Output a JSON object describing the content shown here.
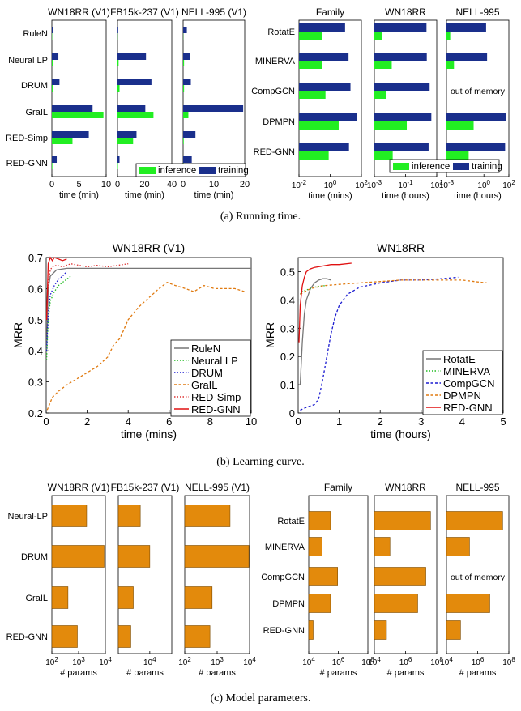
{
  "captions": {
    "a": "(a)  Running time.",
    "b": "(b)  Learning curve.",
    "c": "(c)  Model parameters."
  },
  "legend_labels": {
    "inference": "inference",
    "training": "training"
  },
  "colors": {
    "inference": "#22ee22",
    "training": "#1a2f8c",
    "params": "#e38a0c"
  },
  "misc": {
    "oom": "out of memory"
  },
  "chart_data": [
    {
      "type": "bar",
      "orientation": "horizontal",
      "id": "time-inductive",
      "methods": [
        "RuleN",
        "Neural LP",
        "DRUM",
        "GraIL",
        "RED-Simp",
        "RED-GNN"
      ],
      "xlabel": "time (min)",
      "panels": [
        {
          "title": "WN18RR (V1)",
          "xlim": [
            0,
            10
          ],
          "ticks": [
            0,
            5,
            10
          ],
          "training": [
            0.2,
            1.2,
            1.4,
            7.5,
            6.8,
            0.9
          ],
          "inference": [
            0.05,
            0.3,
            0.3,
            9.5,
            3.8,
            0.1
          ]
        },
        {
          "title": "FB15k-237 (V1)",
          "xlim": [
            0,
            40
          ],
          "ticks": [
            0,
            20,
            40
          ],
          "training": [
            0.5,
            21,
            25,
            20.5,
            14,
            1.5
          ],
          "inference": [
            0.1,
            0.8,
            1.5,
            26.5,
            11.5,
            0.3
          ]
        },
        {
          "title": "NELL-995 (V1)",
          "xlim": [
            0,
            20
          ],
          "ticks": [
            0,
            10,
            20
          ],
          "training": [
            1.2,
            2.3,
            2.5,
            19.5,
            4.0,
            2.8
          ],
          "inference": [
            0.05,
            0.3,
            0.3,
            1.7,
            0.2,
            0.1
          ]
        }
      ]
    },
    {
      "type": "bar",
      "orientation": "horizontal",
      "xscale": "log",
      "id": "time-transductive",
      "methods": [
        "RotatE",
        "MINERVA",
        "CompGCN",
        "DPMPN",
        "RED-GNN"
      ],
      "panels": [
        {
          "title": "Family",
          "xlabel": "time (mins)",
          "xlim": [
            0.01,
            100
          ],
          "ticks": [
            "10-2",
            "100",
            "102"
          ],
          "training": [
            9,
            15,
            20,
            55,
            16
          ],
          "inference": [
            0.3,
            0.3,
            0.5,
            3.5,
            0.8
          ],
          "oom": false
        },
        {
          "title": "WN18RR",
          "xlabel": "time (hours)",
          "xlim": [
            0.001,
            10
          ],
          "ticks": [
            "10-3",
            "10-1",
            "101"
          ],
          "training": [
            2.2,
            2.3,
            3.5,
            4.5,
            3.0
          ],
          "inference": [
            0.003,
            0.013,
            0.006,
            0.12,
            0.015
          ],
          "oom": false
        },
        {
          "title": "NELL-995",
          "xlabel": "time (hours)",
          "xlim": [
            0.001,
            100
          ],
          "ticks": [
            "10-3",
            "100",
            "102"
          ],
          "training": [
            1.5,
            1.8,
            null,
            60,
            50
          ],
          "inference": [
            0.002,
            0.004,
            null,
            0.15,
            0.06
          ],
          "oom": true
        }
      ]
    },
    {
      "type": "line",
      "id": "curve-inductive",
      "title": "WN18RR (V1)",
      "xlabel": "time (mins)",
      "ylabel": "MRR",
      "xlim": [
        0,
        10
      ],
      "ylim": [
        0.2,
        0.7
      ],
      "xticks": [
        0,
        2,
        4,
        6,
        8,
        10
      ],
      "yticks": [
        0.2,
        0.3,
        0.4,
        0.5,
        0.6,
        0.7
      ],
      "legend": "bottom-right",
      "series": [
        {
          "name": "RuleN",
          "color": "#777777",
          "dash": "solid",
          "x": [
            0.02,
            0.1,
            0.2,
            0.5,
            1,
            2,
            4,
            6,
            8,
            10
          ],
          "y": [
            0.4,
            0.6,
            0.64,
            0.66,
            0.665,
            0.665,
            0.665,
            0.665,
            0.665,
            0.665
          ]
        },
        {
          "name": "Neural LP",
          "color": "#22bb22",
          "dash": "dot",
          "x": [
            0.02,
            0.1,
            0.2,
            0.4,
            0.6,
            0.8,
            1.0,
            1.2
          ],
          "y": [
            0.37,
            0.5,
            0.56,
            0.59,
            0.61,
            0.62,
            0.63,
            0.64
          ]
        },
        {
          "name": "DRUM",
          "color": "#1a1ad0",
          "dash": "dot",
          "x": [
            0.02,
            0.1,
            0.2,
            0.4,
            0.6,
            0.8,
            1.0
          ],
          "y": [
            0.4,
            0.52,
            0.58,
            0.61,
            0.63,
            0.64,
            0.655
          ]
        },
        {
          "name": "GraIL",
          "color": "#e07a10",
          "dash": "dash",
          "x": [
            0.05,
            0.3,
            0.6,
            1,
            1.5,
            2,
            2.5,
            3,
            3.3,
            3.6,
            4,
            4.5,
            5,
            5.5,
            5.9,
            6.3,
            6.8,
            7.2,
            7.7,
            8.2,
            8.7,
            9.2,
            9.7
          ],
          "y": [
            0.21,
            0.25,
            0.27,
            0.29,
            0.31,
            0.33,
            0.35,
            0.38,
            0.42,
            0.44,
            0.5,
            0.54,
            0.57,
            0.6,
            0.62,
            0.61,
            0.6,
            0.59,
            0.61,
            0.6,
            0.6,
            0.6,
            0.59
          ]
        },
        {
          "name": "RED-Simp",
          "color": "#dd3333",
          "dash": "dot",
          "x": [
            0.02,
            0.1,
            0.2,
            0.3,
            0.5,
            0.8,
            1.2,
            1.6,
            2,
            2.5,
            3,
            3.5,
            4
          ],
          "y": [
            0.5,
            0.62,
            0.66,
            0.67,
            0.675,
            0.67,
            0.68,
            0.675,
            0.67,
            0.675,
            0.67,
            0.675,
            0.68
          ]
        },
        {
          "name": "RED-GNN",
          "color": "#e01010",
          "dash": "solid",
          "x": [
            0.02,
            0.1,
            0.2,
            0.3,
            0.4,
            0.6,
            0.8,
            1.0
          ],
          "y": [
            0.5,
            0.68,
            0.7,
            0.69,
            0.7,
            0.695,
            0.69,
            0.695
          ]
        }
      ]
    },
    {
      "type": "line",
      "id": "curve-transductive",
      "title": "WN18RR",
      "xlabel": "time (hours)",
      "ylabel": "MRR",
      "xlim": [
        0,
        5
      ],
      "ylim": [
        0,
        0.55
      ],
      "xticks": [
        0,
        1,
        2,
        3,
        4,
        5
      ],
      "yticks": [
        0,
        0.1,
        0.2,
        0.3,
        0.4,
        0.5
      ],
      "legend": "bottom-right",
      "series": [
        {
          "name": "RotatE",
          "color": "#777777",
          "dash": "solid",
          "x": [
            0.05,
            0.1,
            0.15,
            0.2,
            0.3,
            0.4,
            0.5,
            0.6,
            0.7,
            0.8
          ],
          "y": [
            0.1,
            0.25,
            0.35,
            0.4,
            0.44,
            0.46,
            0.47,
            0.475,
            0.475,
            0.47
          ]
        },
        {
          "name": "MINERVA",
          "color": "#22bb22",
          "dash": "dot",
          "x": [
            0.05,
            0.1,
            0.2,
            0.3,
            0.4,
            0.5,
            0.6,
            0.7
          ],
          "y": [
            0.42,
            0.43,
            0.435,
            0.44,
            0.445,
            0.448,
            0.45,
            0.45
          ]
        },
        {
          "name": "CompGCN",
          "color": "#1a1ad0",
          "dash": "dash",
          "x": [
            0.05,
            0.2,
            0.4,
            0.5,
            0.6,
            0.7,
            0.8,
            0.9,
            1.0,
            1.2,
            1.5,
            2.0,
            2.5,
            3.0,
            3.5,
            3.9
          ],
          "y": [
            0.01,
            0.02,
            0.03,
            0.05,
            0.12,
            0.2,
            0.28,
            0.34,
            0.38,
            0.42,
            0.445,
            0.46,
            0.47,
            0.47,
            0.475,
            0.48
          ]
        },
        {
          "name": "DPMPN",
          "color": "#e07a10",
          "dash": "dash",
          "x": [
            0.05,
            0.3,
            0.6,
            1,
            1.5,
            2,
            2.5,
            3,
            3.5,
            4,
            4.3,
            4.6
          ],
          "y": [
            0.42,
            0.44,
            0.45,
            0.455,
            0.46,
            0.465,
            0.47,
            0.47,
            0.47,
            0.47,
            0.465,
            0.46
          ]
        },
        {
          "name": "RED-GNN",
          "color": "#e01010",
          "dash": "solid",
          "x": [
            0.02,
            0.05,
            0.1,
            0.15,
            0.2,
            0.3,
            0.4,
            0.6,
            0.8,
            1.0,
            1.3
          ],
          "y": [
            0.25,
            0.38,
            0.45,
            0.48,
            0.5,
            0.51,
            0.515,
            0.52,
            0.525,
            0.525,
            0.53
          ]
        }
      ]
    },
    {
      "type": "bar",
      "orientation": "horizontal",
      "xscale": "log",
      "id": "params-inductive",
      "methods": [
        "Neural-LP",
        "DRUM",
        "GraIL",
        "RED-GNN"
      ],
      "xlabel": "# params",
      "panels": [
        {
          "title": "WN18RR (V1)",
          "xlim": [
            100,
            10000
          ],
          "ticks": [
            "102",
            "103",
            "104"
          ],
          "values": [
            2000,
            9000,
            400,
            900
          ]
        },
        {
          "title": "FB15k-237 (V1)",
          "xlim": [
            1000,
            50000
          ],
          "ticks": [
            "104"
          ],
          "values": [
            5000,
            10000,
            3000,
            2500
          ]
        },
        {
          "title": "NELL-995 (V1)",
          "xlim": [
            100,
            10000
          ],
          "ticks": [
            "102",
            "103",
            "104"
          ],
          "values": [
            2500,
            9500,
            700,
            600
          ]
        }
      ]
    },
    {
      "type": "bar",
      "orientation": "horizontal",
      "xscale": "log",
      "id": "params-transductive",
      "methods": [
        "RotatE",
        "MINERVA",
        "CompGCN",
        "DPMPN",
        "RED-GNN"
      ],
      "xlabel": "# params",
      "panels": [
        {
          "title": "Family",
          "xlim": [
            10000,
            100000000
          ],
          "ticks": [
            "104",
            "106",
            "108"
          ],
          "values": [
            300000,
            80000,
            900000,
            300000,
            20000
          ],
          "oom": false
        },
        {
          "title": "WN18RR",
          "xlim": [
            10000,
            100000000
          ],
          "ticks": [
            "104",
            "106",
            "108"
          ],
          "values": [
            40000000,
            100000,
            20000000,
            6000000,
            60000
          ],
          "oom": false
        },
        {
          "title": "NELL-995",
          "xlim": [
            10000,
            100000000
          ],
          "ticks": [
            "104",
            "106",
            "108"
          ],
          "values": [
            40000000,
            300000,
            null,
            6000000,
            80000
          ],
          "oom": true
        }
      ]
    }
  ]
}
